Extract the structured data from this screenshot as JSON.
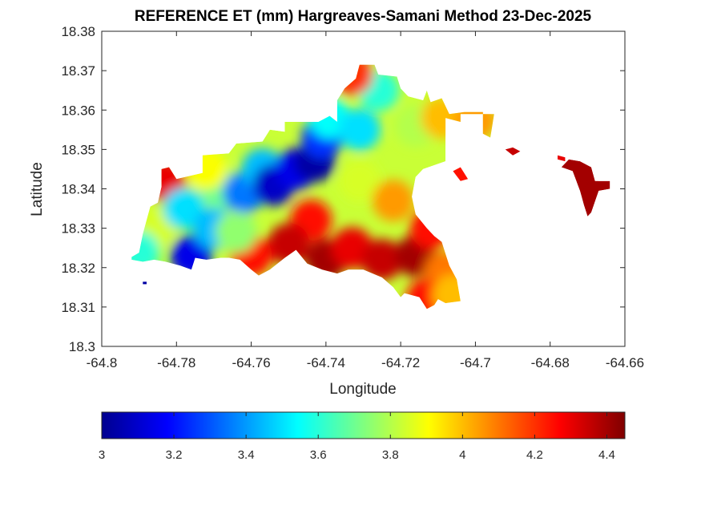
{
  "chart_data": {
    "type": "heatmap",
    "title": "REFERENCE ET (mm) Hargreaves-Samani Method  23-Dec-2025",
    "xlabel": "Longitude",
    "ylabel": "Latitude",
    "xlim": [
      -64.8,
      -64.66
    ],
    "ylim": [
      18.3,
      18.38
    ],
    "x_ticks": [
      -64.8,
      -64.78,
      -64.76,
      -64.74,
      -64.72,
      -64.7,
      -64.68,
      -64.66
    ],
    "x_tick_labels": [
      "-64.8",
      "-64.78",
      "-64.76",
      "-64.74",
      "-64.72",
      "-64.7",
      "-64.68",
      "-64.66"
    ],
    "y_ticks": [
      18.3,
      18.31,
      18.32,
      18.33,
      18.34,
      18.35,
      18.36,
      18.37,
      18.38
    ],
    "y_tick_labels": [
      "18.3",
      "18.31",
      "18.32",
      "18.33",
      "18.34",
      "18.35",
      "18.36",
      "18.37",
      "18.38"
    ],
    "grid": false,
    "colormap": "jet",
    "colorbar": {
      "orientation": "horizontal",
      "location": "below",
      "clim": [
        3,
        4.45
      ],
      "ticks": [
        3,
        3.2,
        3.4,
        3.6,
        3.8,
        4,
        4.2,
        4.4
      ],
      "tick_labels": [
        "3",
        "3.2",
        "3.4",
        "3.6",
        "3.8",
        "4",
        "4.2",
        "4.4"
      ]
    },
    "regions": [
      {
        "name": "",
        "outline": [
          [
            -64.792,
            18.3227
          ],
          [
            -64.79,
            18.3238
          ],
          [
            -64.789,
            18.3285
          ],
          [
            -64.787,
            18.3355
          ],
          [
            -64.785,
            18.3365
          ],
          [
            -64.784,
            18.3405
          ],
          [
            -64.784,
            18.345
          ],
          [
            -64.782,
            18.3455
          ],
          [
            -64.78,
            18.3425
          ],
          [
            -64.773,
            18.344
          ],
          [
            -64.773,
            18.3485
          ],
          [
            -64.766,
            18.349
          ],
          [
            -64.764,
            18.3515
          ],
          [
            -64.757,
            18.352
          ],
          [
            -64.755,
            18.355
          ],
          [
            -64.751,
            18.3545
          ],
          [
            -64.751,
            18.357
          ],
          [
            -64.742,
            18.357
          ],
          [
            -64.739,
            18.3585
          ],
          [
            -64.737,
            18.357
          ],
          [
            -64.737,
            18.3625
          ],
          [
            -64.735,
            18.3655
          ],
          [
            -64.732,
            18.368
          ],
          [
            -64.731,
            18.3715
          ],
          [
            -64.727,
            18.3715
          ],
          [
            -64.726,
            18.369
          ],
          [
            -64.721,
            18.3685
          ],
          [
            -64.72,
            18.3655
          ],
          [
            -64.718,
            18.3635
          ],
          [
            -64.714,
            18.3625
          ],
          [
            -64.713,
            18.365
          ],
          [
            -64.712,
            18.362
          ],
          [
            -64.709,
            18.363
          ],
          [
            -64.707,
            18.359
          ],
          [
            -64.703,
            18.3595
          ],
          [
            -64.698,
            18.3595
          ],
          [
            -64.698,
            18.354
          ],
          [
            -64.696,
            18.353
          ],
          [
            -64.695,
            18.359
          ],
          [
            -64.7,
            18.359
          ],
          [
            -64.704,
            18.359
          ],
          [
            -64.704,
            18.357
          ],
          [
            -64.708,
            18.358
          ],
          [
            -64.708,
            18.347
          ],
          [
            -64.714,
            18.345
          ],
          [
            -64.716,
            18.343
          ],
          [
            -64.717,
            18.338
          ],
          [
            -64.716,
            18.3335
          ],
          [
            -64.713,
            18.33
          ],
          [
            -64.711,
            18.328
          ],
          [
            -64.709,
            18.3265
          ],
          [
            -64.707,
            18.3205
          ],
          [
            -64.705,
            18.317
          ],
          [
            -64.704,
            18.3115
          ],
          [
            -64.708,
            18.311
          ],
          [
            -64.71,
            18.312
          ],
          [
            -64.711,
            18.3105
          ],
          [
            -64.713,
            18.3095
          ],
          [
            -64.715,
            18.3125
          ],
          [
            -64.719,
            18.3135
          ],
          [
            -64.72,
            18.3125
          ],
          [
            -64.722,
            18.315
          ],
          [
            -64.725,
            18.3175
          ],
          [
            -64.73,
            18.3195
          ],
          [
            -64.734,
            18.3195
          ],
          [
            -64.737,
            18.3185
          ],
          [
            -64.741,
            18.3195
          ],
          [
            -64.745,
            18.321
          ],
          [
            -64.748,
            18.3245
          ],
          [
            -64.751,
            18.3225
          ],
          [
            -64.755,
            18.3195
          ],
          [
            -64.758,
            18.318
          ],
          [
            -64.76,
            18.3195
          ],
          [
            -64.763,
            18.322
          ],
          [
            -64.766,
            18.3225
          ],
          [
            -64.768,
            18.3225
          ],
          [
            -64.772,
            18.322
          ],
          [
            -64.775,
            18.3225
          ],
          [
            -64.776,
            18.3195
          ],
          [
            -64.779,
            18.3205
          ],
          [
            -64.783,
            18.3215
          ],
          [
            -64.786,
            18.322
          ],
          [
            -64.789,
            18.3215
          ],
          [
            -64.792,
            18.322
          ]
        ],
        "values": [
          {
            "lon": -64.786,
            "lat": 18.33,
            "et": 3.85
          },
          {
            "lon": -64.783,
            "lat": 18.342,
            "et": 4.3
          },
          {
            "lon": -64.778,
            "lat": 18.335,
            "et": 3.5
          },
          {
            "lon": -64.776,
            "lat": 18.323,
            "et": 3.15
          },
          {
            "lon": -64.77,
            "lat": 18.33,
            "et": 3.45
          },
          {
            "lon": -64.768,
            "lat": 18.34,
            "et": 3.7
          },
          {
            "lon": -64.762,
            "lat": 18.339,
            "et": 3.35
          },
          {
            "lon": -64.757,
            "lat": 18.345,
            "et": 3.45
          },
          {
            "lon": -64.754,
            "lat": 18.341,
            "et": 3.1
          },
          {
            "lon": -64.748,
            "lat": 18.345,
            "et": 3.15
          },
          {
            "lon": -64.743,
            "lat": 18.347,
            "et": 3.05
          },
          {
            "lon": -64.741,
            "lat": 18.353,
            "et": 3.25
          },
          {
            "lon": -64.739,
            "lat": 18.358,
            "et": 3.55
          },
          {
            "lon": -64.731,
            "lat": 18.355,
            "et": 3.5
          },
          {
            "lon": -64.726,
            "lat": 18.365,
            "et": 3.6
          },
          {
            "lon": -64.733,
            "lat": 18.369,
            "et": 4.2
          },
          {
            "lon": -64.716,
            "lat": 18.356,
            "et": 3.8
          },
          {
            "lon": -64.709,
            "lat": 18.358,
            "et": 4.0
          },
          {
            "lon": -64.7,
            "lat": 18.3575,
            "et": 4.05
          },
          {
            "lon": -64.731,
            "lat": 18.342,
            "et": 3.85
          },
          {
            "lon": -64.722,
            "lat": 18.337,
            "et": 4.05
          },
          {
            "lon": -64.744,
            "lat": 18.332,
            "et": 4.25
          },
          {
            "lon": -64.75,
            "lat": 18.326,
            "et": 4.35
          },
          {
            "lon": -64.74,
            "lat": 18.322,
            "et": 4.4
          },
          {
            "lon": -64.733,
            "lat": 18.325,
            "et": 4.3
          },
          {
            "lon": -64.725,
            "lat": 18.322,
            "et": 4.35
          },
          {
            "lon": -64.716,
            "lat": 18.323,
            "et": 4.4
          },
          {
            "lon": -64.712,
            "lat": 18.33,
            "et": 4.25
          },
          {
            "lon": -64.708,
            "lat": 18.319,
            "et": 4.1
          },
          {
            "lon": -64.713,
            "lat": 18.312,
            "et": 4.25
          },
          {
            "lon": -64.706,
            "lat": 18.313,
            "et": 4.0
          },
          {
            "lon": -64.76,
            "lat": 18.323,
            "et": 4.25
          },
          {
            "lon": -64.764,
            "lat": 18.329,
            "et": 3.75
          },
          {
            "lon": -64.772,
            "lat": 18.345,
            "et": 3.9
          },
          {
            "lon": -64.79,
            "lat": 18.324,
            "et": 3.6
          }
        ]
      },
      {
        "name": "",
        "outline": [
          [
            -64.675,
            18.3475
          ],
          [
            -64.672,
            18.347
          ],
          [
            -64.669,
            18.3455
          ],
          [
            -64.668,
            18.342
          ],
          [
            -64.664,
            18.342
          ],
          [
            -64.664,
            18.34
          ],
          [
            -64.667,
            18.3395
          ],
          [
            -64.669,
            18.334
          ],
          [
            -64.67,
            18.333
          ],
          [
            -64.671,
            18.336
          ],
          [
            -64.672,
            18.3395
          ],
          [
            -64.674,
            18.3445
          ],
          [
            -64.677,
            18.3455
          ]
        ],
        "values": [
          {
            "lon": -64.67,
            "lat": 18.341,
            "et": 4.4
          }
        ]
      },
      {
        "name": "",
        "outline": [
          [
            -64.692,
            18.35
          ],
          [
            -64.69,
            18.3505
          ],
          [
            -64.688,
            18.3495
          ],
          [
            -64.69,
            18.3485
          ]
        ],
        "values": [
          {
            "lon": -64.69,
            "lat": 18.3495,
            "et": 4.35
          }
        ]
      },
      {
        "name": "",
        "outline": [
          [
            -64.706,
            18.3445
          ],
          [
            -64.704,
            18.342
          ],
          [
            -64.702,
            18.3425
          ],
          [
            -64.704,
            18.3455
          ]
        ],
        "values": [
          {
            "lon": -64.704,
            "lat": 18.3435,
            "et": 4.25
          }
        ]
      },
      {
        "name": "",
        "outline": [
          [
            -64.678,
            18.3485
          ],
          [
            -64.676,
            18.348
          ],
          [
            -64.676,
            18.347
          ],
          [
            -64.678,
            18.3475
          ]
        ],
        "values": [
          {
            "lon": -64.677,
            "lat": 18.3478,
            "et": 4.3
          }
        ]
      },
      {
        "name": "",
        "outline": [
          [
            -64.789,
            18.3164
          ],
          [
            -64.788,
            18.3164
          ],
          [
            -64.788,
            18.3158
          ],
          [
            -64.789,
            18.3158
          ]
        ],
        "values": [
          {
            "lon": -64.7885,
            "lat": 18.3161,
            "et": 3.05
          }
        ]
      }
    ]
  }
}
